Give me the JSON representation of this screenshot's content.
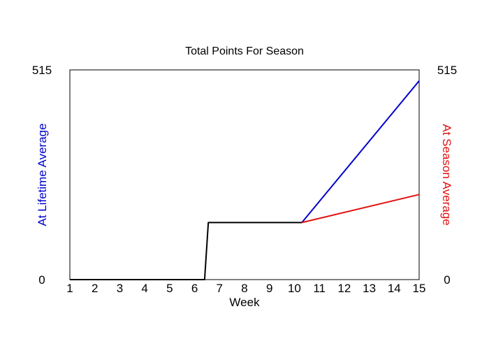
{
  "chart_data": {
    "type": "line",
    "title": "Total Points For Season",
    "xlabel": "Week",
    "ylabel_left": "At Lifetime Average",
    "ylabel_right": "At Season Average",
    "xlim": [
      1,
      15
    ],
    "ylim": [
      0,
      515
    ],
    "x_ticks": [
      "1",
      "2",
      "3",
      "4",
      "5",
      "6",
      "7",
      "8",
      "9",
      "10",
      "11",
      "12",
      "13",
      "14",
      "15"
    ],
    "y_ticks_left": [
      "0",
      "515"
    ],
    "y_ticks_right": [
      "0",
      "515"
    ],
    "grid": false,
    "colors": {
      "actual": "#000000",
      "lifetime": "#0000cc",
      "season": "#e01010",
      "left_label": "#0000cc",
      "right_label": "#e01010"
    },
    "series": [
      {
        "key": "actual",
        "x": [
          1,
          6.4,
          6.55,
          10.3
        ],
        "y": [
          0,
          0,
          140,
          140
        ]
      },
      {
        "key": "lifetime",
        "x": [
          10.3,
          15
        ],
        "y": [
          140,
          488
        ]
      },
      {
        "key": "season",
        "x": [
          10.3,
          15
        ],
        "y": [
          140,
          209
        ]
      }
    ]
  }
}
